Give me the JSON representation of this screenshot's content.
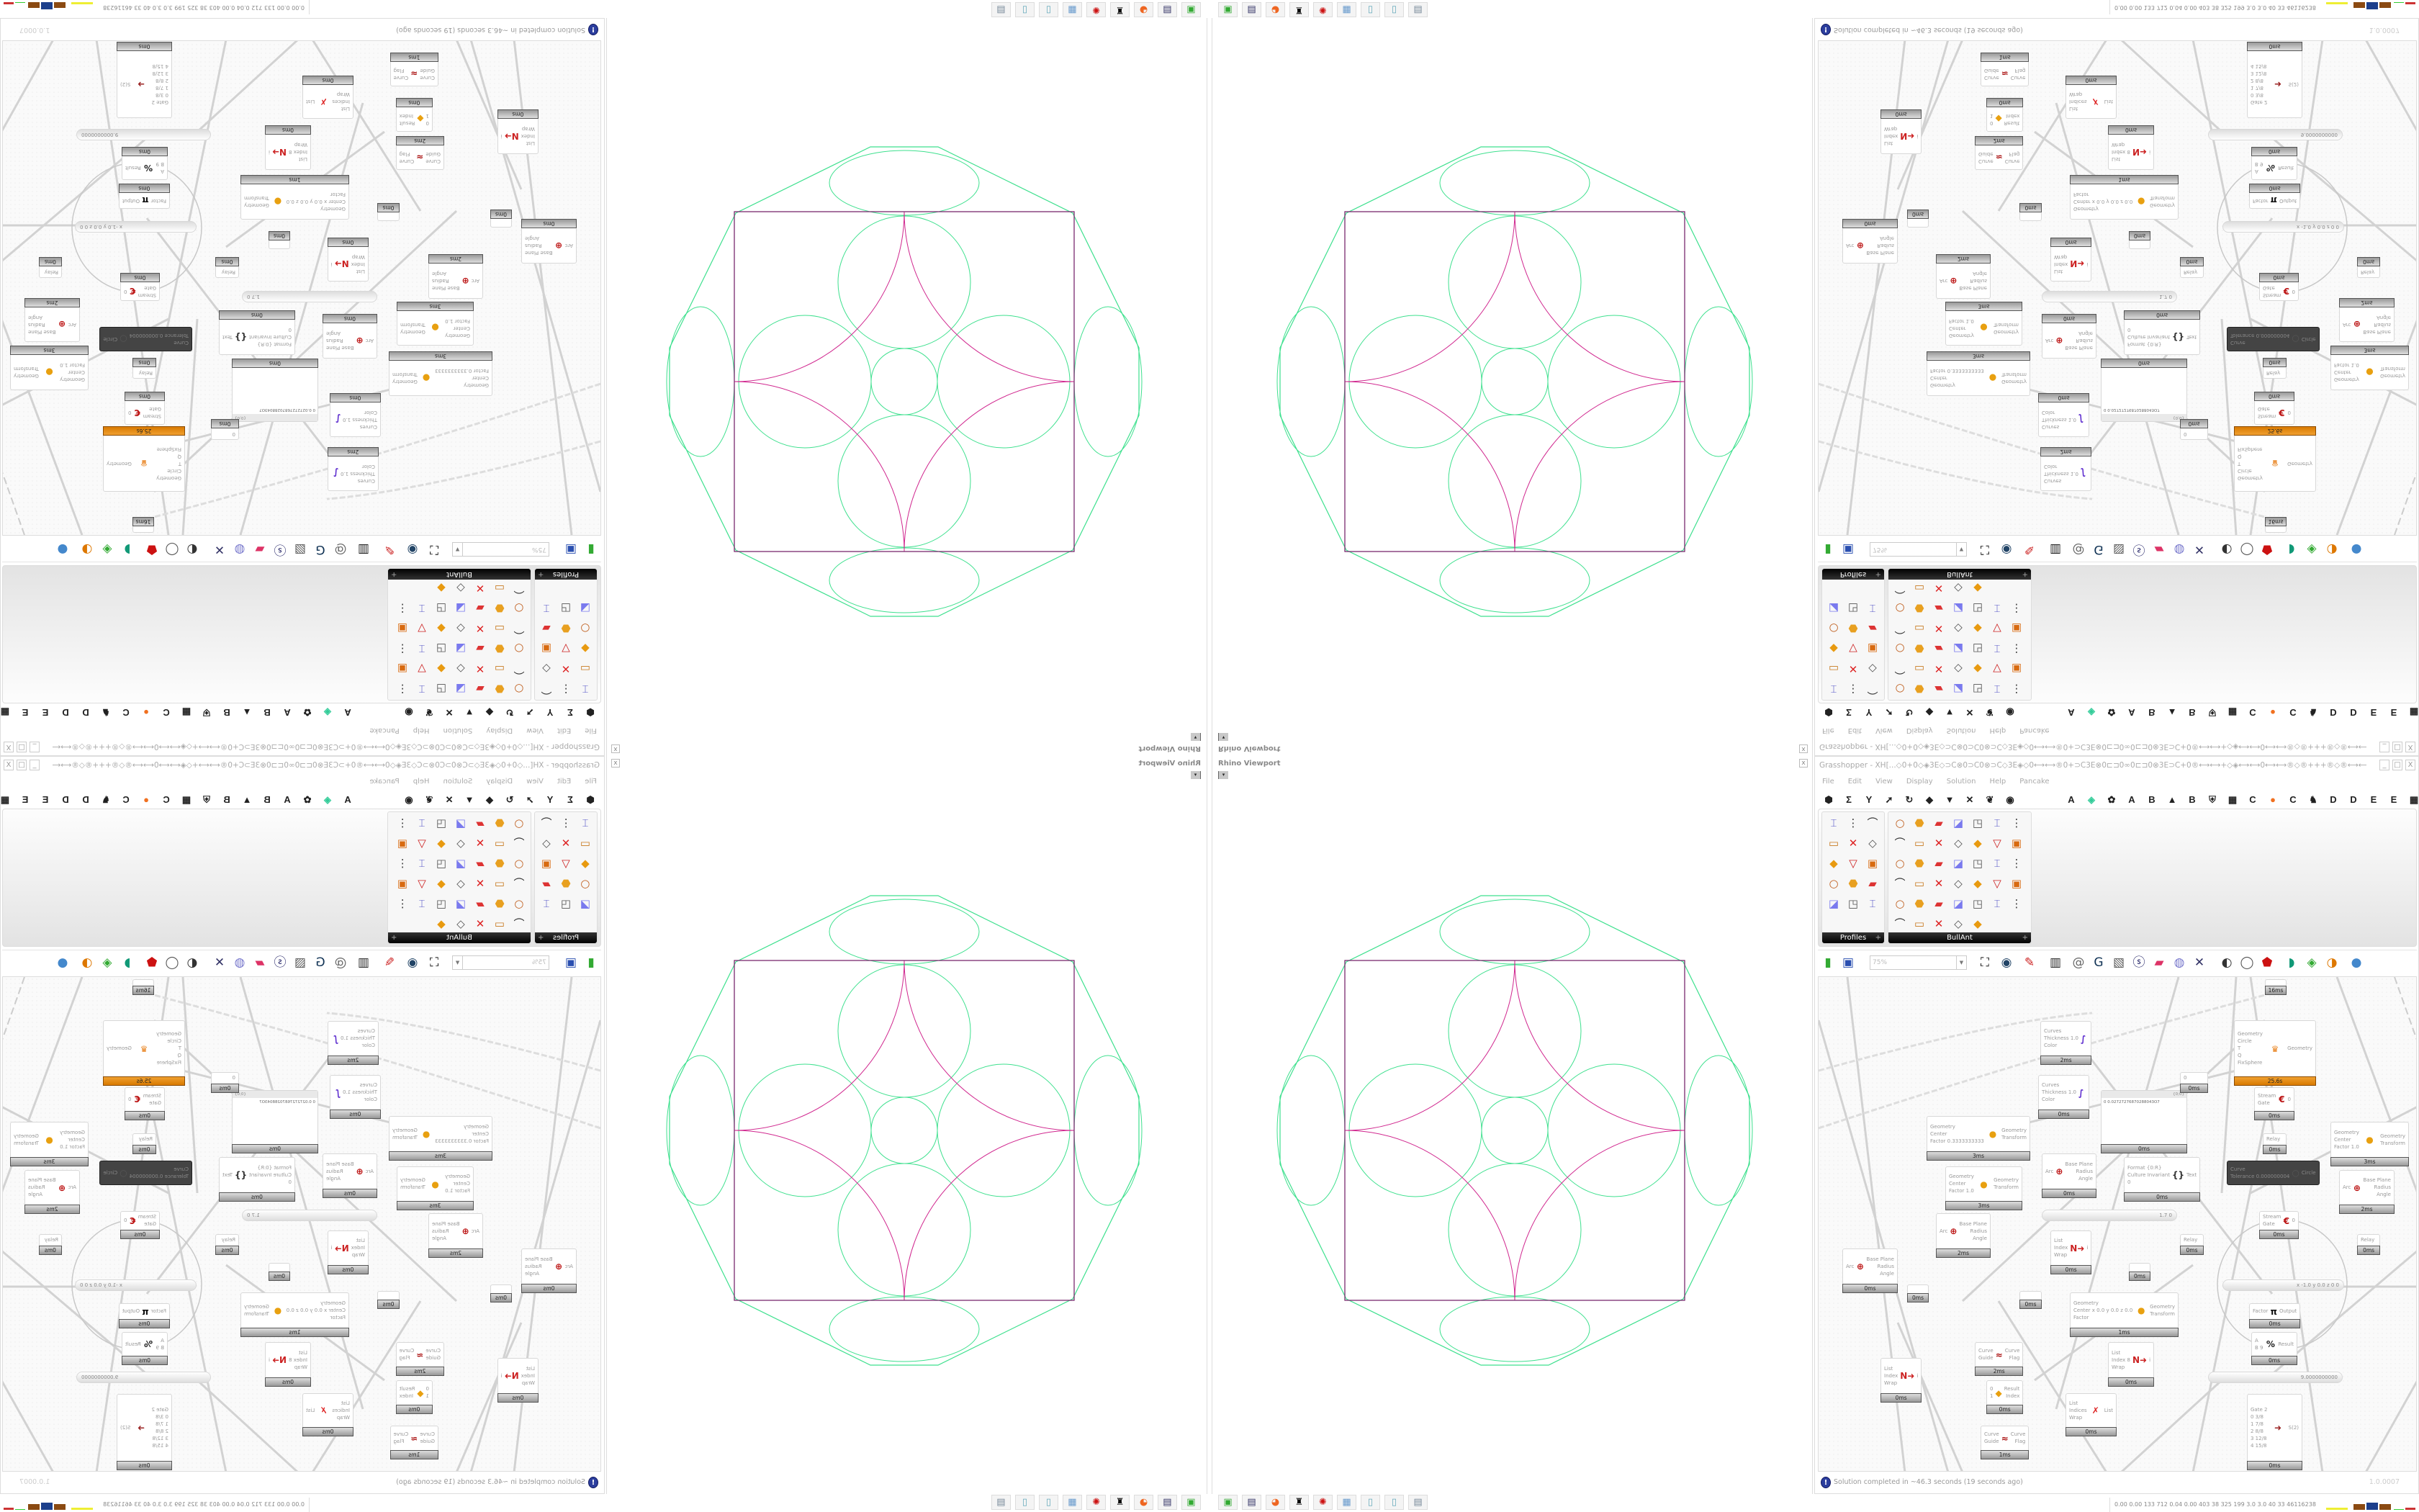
{
  "rhino": {
    "title": "Rhino Viewport",
    "close_label": "x",
    "dropdown_label": "▾"
  },
  "grasshopper": {
    "title": "Grasshopper - XH[...◇0+0◇◈3E◇⊃C⊗0⊃C0⊗⊃C◇3E◈◇0⟷⟷®0+⊃C3E⊗0⊏⊐0∞0⊏⊐0⊗3E⊃C+0®⟷⟷+◇◈⟷⟷0⟷⟷®◇®+++®◇®⟷⟷0⟷⟷◈◇0⟷⟷®0+⊃C3E⊗0⊏⊐0∞0...",
    "window_buttons": [
      "_",
      "□",
      "X"
    ],
    "menu": [
      "File",
      "Edit",
      "View",
      "Display",
      "Solution",
      "Help",
      "Pancake"
    ],
    "component_tabs_left": [
      "params-hexagon-icon",
      "maths-sigma-icon",
      "sets-fork-icon",
      "vector-arrow-icon",
      "curve-icon",
      "surface-icon",
      "mesh-icon",
      "intersect-icon",
      "transform-icon",
      "display-eye-icon"
    ],
    "component_tabs_right": [
      "A",
      "kangaroo-icon",
      "gear-icon",
      "A",
      "B",
      "mountain-icon",
      "B",
      "shield-icon",
      "grid-icon",
      "C",
      "orange-dot-icon",
      "C",
      "rooster-icon",
      "D",
      "D",
      "E",
      "E",
      "more-icon"
    ],
    "palettes": [
      {
        "label": "Profiles",
        "icon_count": 15
      },
      {
        "label": "BullAnt",
        "icon_count": 40
      }
    ],
    "toolbar": {
      "zoom": "75%"
    },
    "status": {
      "message": "Solution completed in ~46.3 seconds (19 seconds ago)",
      "version": "1.0.0007"
    },
    "canvas": {
      "nodes": [
        {
          "kind": "param",
          "inputs": [
            ""
          ],
          "outputs": [
            ""
          ],
          "time": "16ms"
        },
        {
          "kind": "preview",
          "inputs": [
            "Curves",
            "Thickness 1.0",
            "Color"
          ],
          "outputs": [],
          "icon": "custom-preview-icon",
          "time": "2ms"
        },
        {
          "kind": "preview",
          "inputs": [
            "Curves",
            "Thickness 1.0",
            "Color"
          ],
          "outputs": [],
          "icon": "custom-preview-icon",
          "time": "0ms"
        },
        {
          "kind": "comp",
          "inputs": [
            "Geometry",
            "Center",
            "Factor 0.3333333333"
          ],
          "outputs": [
            "Geometry",
            "Transform"
          ],
          "icon": "scale-icon",
          "time": "3ms"
        },
        {
          "kind": "comp",
          "inputs": [
            "Geometry",
            "Center",
            "Factor 1.0"
          ],
          "outputs": [
            "Geometry",
            "Transform"
          ],
          "icon": "scale-icon",
          "time": "3ms"
        },
        {
          "kind": "comp",
          "inputs": [
            "Arc"
          ],
          "outputs": [
            "Base Plane",
            "Radius",
            "Angle"
          ],
          "icon": "arc-icon",
          "time": "0ms"
        },
        {
          "kind": "comp",
          "inputs": [
            "Format {0:R}",
            "Culture Invariant",
            "0"
          ],
          "outputs": [
            "Text"
          ],
          "icon": "format-icon",
          "time": "0ms"
        },
        {
          "kind": "panel",
          "header": "{0;0}",
          "text": "0  0.02727276870288043O7",
          "time": "0ms"
        },
        {
          "kind": "param",
          "inputs": [
            "0"
          ],
          "outputs": [],
          "time": "0ms"
        },
        {
          "kind": "solver",
          "inputs": [
            "Geometry",
            "Circle",
            "T",
            "Q",
            "FixSphere"
          ],
          "outputs": [
            "Geometry"
          ],
          "icon": "kangaroo-icon",
          "time": "25.6s"
        },
        {
          "kind": "comp",
          "inputs": [
            "Stream",
            "Gate"
          ],
          "outputs": [
            "0"
          ],
          "icon": "stream-gate-icon",
          "time": "0ms"
        },
        {
          "kind": "relay",
          "inputs": [
            "Relay"
          ],
          "outputs": [],
          "time": "0ms"
        },
        {
          "kind": "disabled",
          "inputs": [
            "Curve",
            "Tolerance 0.000000004"
          ],
          "outputs": [
            "Circle"
          ],
          "icon": "fit-circle-icon"
        },
        {
          "kind": "comp",
          "inputs": [
            "Geometry",
            "Center",
            "Factor 1.0"
          ],
          "outputs": [
            "Geometry",
            "Transform"
          ],
          "icon": "scale-icon",
          "time": "3ms"
        },
        {
          "kind": "comp",
          "inputs": [
            "Arc"
          ],
          "outputs": [
            "Base Plane",
            "Radius",
            "Angle"
          ],
          "icon": "arc-icon",
          "time": "2ms"
        },
        {
          "kind": "slider",
          "value": "1.7 0"
        },
        {
          "kind": "comp",
          "inputs": [
            "Arc"
          ],
          "outputs": [
            "Base Plane",
            "Radius",
            "Angle"
          ],
          "icon": "arc-icon",
          "time": "2ms"
        },
        {
          "kind": "comp",
          "inputs": [
            "Arc"
          ],
          "outputs": [
            "Base Plane",
            "Radius",
            "Angle"
          ],
          "icon": "arc-icon",
          "time": "0ms"
        },
        {
          "kind": "comp",
          "inputs": [
            "List",
            "Index",
            "Wrap"
          ],
          "outputs": [
            "i"
          ],
          "icon": "list-item-icon",
          "time": "0ms"
        },
        {
          "kind": "comp",
          "inputs": [
            "Geometry",
            "Center x 0.0 y 0.0 z 0.0",
            "Factor"
          ],
          "outputs": [
            "Geometry",
            "Transform"
          ],
          "icon": "scale-icon",
          "time": "1ms"
        },
        {
          "kind": "comp",
          "inputs": [
            "Curve",
            "Guide"
          ],
          "outputs": [
            "Curve",
            "Flag"
          ],
          "icon": "flip-curve-icon",
          "time": "2ms"
        },
        {
          "kind": "comp",
          "inputs": [
            "List",
            "Index 8",
            "Wrap"
          ],
          "outputs": [
            "i"
          ],
          "icon": "list-item-icon",
          "time": "0ms"
        },
        {
          "kind": "comp",
          "inputs": [
            "List",
            "Index",
            "Wrap"
          ],
          "outputs": [
            "i"
          ],
          "icon": "list-item-icon",
          "time": "0ms"
        },
        {
          "kind": "comp",
          "inputs": [
            "0",
            "1"
          ],
          "outputs": [
            "Result",
            "Index"
          ],
          "icon": "pick-icon",
          "time": "0ms"
        },
        {
          "kind": "comp",
          "inputs": [
            "Factor"
          ],
          "outputs": [
            "Output"
          ],
          "icon": "pi-icon",
          "time": "0ms"
        },
        {
          "kind": "comp",
          "inputs": [
            "A",
            "B 9"
          ],
          "outputs": [
            "Result"
          ],
          "icon": "division-icon",
          "time": "0ms"
        },
        {
          "kind": "slider",
          "value": "9.0000000000"
        },
        {
          "kind": "relay",
          "inputs": [
            "Relay"
          ],
          "outputs": [],
          "time": "0ms"
        },
        {
          "kind": "relay",
          "inputs": [
            "Relay"
          ],
          "outputs": [],
          "time": "0ms"
        },
        {
          "kind": "slider",
          "value": "x -1.0  y 0.0  z 0    0"
        },
        {
          "kind": "param",
          "inputs": [
            ""
          ],
          "outputs": [],
          "time": "0ms"
        },
        {
          "kind": "param",
          "inputs": [
            ""
          ],
          "outputs": [],
          "time": "0ms"
        },
        {
          "kind": "param",
          "inputs": [
            ""
          ],
          "outputs": [],
          "time": "0ms"
        },
        {
          "kind": "comp",
          "inputs": [
            "Stream",
            "Gate"
          ],
          "outputs": [
            "0"
          ],
          "icon": "stream-gate-icon",
          "time": "0ms"
        },
        {
          "kind": "comp",
          "inputs": [
            "Gate 2",
            "0  3/8",
            "1  7/8",
            "2  8/8",
            "3  12/8",
            "4  15/8"
          ],
          "outputs": [
            "S(2)"
          ],
          "icon": "stream-filter-icon",
          "time": "0ms"
        },
        {
          "kind": "comp",
          "inputs": [
            "Curve",
            "Guide"
          ],
          "outputs": [
            "Curve",
            "Flag"
          ],
          "icon": "flip-curve-icon",
          "time": "1ms"
        },
        {
          "kind": "comp",
          "inputs": [
            "List",
            "Indices",
            "Wrap"
          ],
          "outputs": [
            "List"
          ],
          "icon": "cull-index-icon",
          "time": "0ms"
        }
      ]
    }
  },
  "taskbar": {
    "apps": [
      "rhino-green-icon",
      "floppy-64-icon",
      "firefox-icon",
      "inkscape-icon",
      "red-app-icon",
      "calculator-icon",
      "notepad-icon",
      "notepad-icon",
      "printer-icon"
    ],
    "tray_text": "0.00 0.00 133 712 0.04 0.00 403  38  325  199  3.0  3.0  40  33  46116238"
  },
  "colors": {
    "fractal_green": "#3ee08e",
    "fractal_magenta": "#d0268e",
    "square": "#7a2a6e",
    "solver_orange": "#e58a12"
  }
}
